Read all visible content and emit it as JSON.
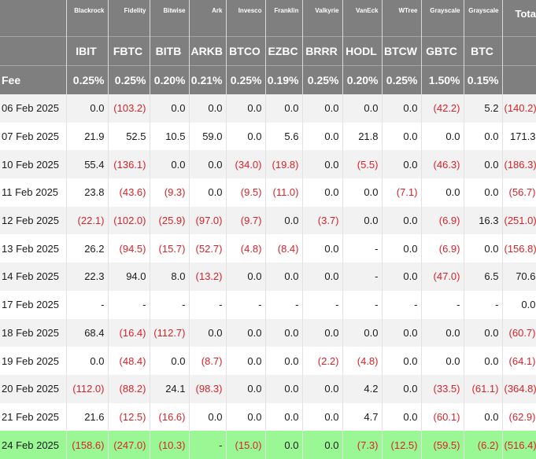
{
  "table": {
    "fee_label": "Fee",
    "total_label": "Total",
    "issuers": [
      "Blackrock",
      "Fidelity",
      "Bitwise",
      "Ark",
      "Invesco",
      "Franklin",
      "Valkyrie",
      "VanEck",
      "WTree",
      "Grayscale",
      "Grayscale"
    ],
    "tickers": [
      "IBIT",
      "FBTC",
      "BITB",
      "ARKB",
      "BTCO",
      "EZBC",
      "BRRR",
      "HODL",
      "BTCW",
      "GBTC",
      "BTC"
    ],
    "fees": [
      "0.25%",
      "0.25%",
      "0.20%",
      "0.21%",
      "0.25%",
      "0.19%",
      "0.25%",
      "0.20%",
      "0.25%",
      "1.50%",
      "0.15%"
    ],
    "rows": [
      {
        "date": "06 Feb 2025",
        "cells": [
          "0.0",
          "(103.2)",
          "0.0",
          "0.0",
          "0.0",
          "0.0",
          "0.0",
          "0.0",
          "0.0",
          "(42.2)",
          "5.2",
          "(140.2)"
        ]
      },
      {
        "date": "07 Feb 2025",
        "cells": [
          "21.9",
          "52.5",
          "10.5",
          "59.0",
          "0.0",
          "5.6",
          "0.0",
          "21.8",
          "0.0",
          "0.0",
          "0.0",
          "171.3"
        ]
      },
      {
        "date": "10 Feb 2025",
        "cells": [
          "55.4",
          "(136.1)",
          "0.0",
          "0.0",
          "(34.0)",
          "(19.8)",
          "0.0",
          "(5.5)",
          "0.0",
          "(46.3)",
          "0.0",
          "(186.3)"
        ]
      },
      {
        "date": "11 Feb 2025",
        "cells": [
          "23.8",
          "(43.6)",
          "(9.3)",
          "0.0",
          "(9.5)",
          "(11.0)",
          "0.0",
          "0.0",
          "(7.1)",
          "0.0",
          "0.0",
          "(56.7)"
        ]
      },
      {
        "date": "12 Feb 2025",
        "cells": [
          "(22.1)",
          "(102.0)",
          "(25.9)",
          "(97.0)",
          "(9.7)",
          "0.0",
          "(3.7)",
          "0.0",
          "0.0",
          "(6.9)",
          "16.3",
          "(251.0)"
        ]
      },
      {
        "date": "13 Feb 2025",
        "cells": [
          "26.2",
          "(94.5)",
          "(15.7)",
          "(52.7)",
          "(4.8)",
          "(8.4)",
          "0.0",
          "-",
          "0.0",
          "(6.9)",
          "0.0",
          "(156.8)"
        ]
      },
      {
        "date": "14 Feb 2025",
        "cells": [
          "22.3",
          "94.0",
          "8.0",
          "(13.2)",
          "0.0",
          "0.0",
          "0.0",
          "-",
          "0.0",
          "(47.0)",
          "6.5",
          "70.6"
        ]
      },
      {
        "date": "17 Feb 2025",
        "cells": [
          "-",
          "-",
          "-",
          "-",
          "-",
          "-",
          "-",
          "-",
          "-",
          "-",
          "-",
          "0.0"
        ]
      },
      {
        "date": "18 Feb 2025",
        "cells": [
          "68.4",
          "(16.4)",
          "(112.7)",
          "0.0",
          "0.0",
          "0.0",
          "0.0",
          "0.0",
          "0.0",
          "0.0",
          "0.0",
          "(60.7)"
        ]
      },
      {
        "date": "19 Feb 2025",
        "cells": [
          "0.0",
          "(48.4)",
          "0.0",
          "(8.7)",
          "0.0",
          "0.0",
          "(2.2)",
          "(4.8)",
          "0.0",
          "0.0",
          "0.0",
          "(64.1)"
        ]
      },
      {
        "date": "20 Feb 2025",
        "cells": [
          "(112.0)",
          "(88.2)",
          "24.1",
          "(98.3)",
          "0.0",
          "0.0",
          "0.0",
          "4.2",
          "0.0",
          "(33.5)",
          "(61.1)",
          "(364.8)"
        ]
      },
      {
        "date": "21 Feb 2025",
        "cells": [
          "21.6",
          "(12.5)",
          "(16.6)",
          "0.0",
          "0.0",
          "0.0",
          "0.0",
          "4.7",
          "0.0",
          "(60.1)",
          "0.0",
          "(62.9)"
        ]
      },
      {
        "date": "24 Feb 2025",
        "cells": [
          "(158.6)",
          "(247.0)",
          "(10.3)",
          "-",
          "(15.0)",
          "0.0",
          "0.0",
          "(7.3)",
          "(12.5)",
          "(59.5)",
          "(6.2)",
          "(516.4)"
        ]
      }
    ]
  },
  "colors": {
    "header_bg": "#7f7f7f",
    "negative": "#d8232a",
    "shade": "#f2f2f2",
    "highlight": "#99f894"
  }
}
